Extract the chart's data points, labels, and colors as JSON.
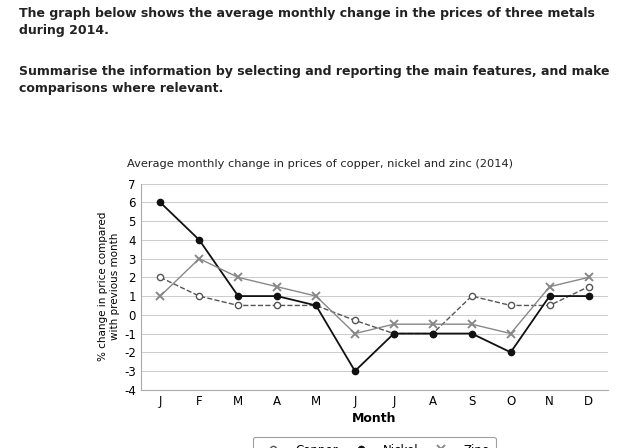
{
  "title": "Average monthly change in prices of copper, nickel and zinc (2014)",
  "xlabel": "Month",
  "ylabel": "% change in price compared\nwith previous month",
  "months": [
    "J",
    "F",
    "M",
    "A",
    "M",
    "J",
    "J",
    "A",
    "S",
    "O",
    "N",
    "D"
  ],
  "copper": [
    2,
    1,
    0.5,
    0.5,
    0.5,
    -0.3,
    -1,
    -1,
    1,
    0.5,
    0.5,
    1.5
  ],
  "nickel": [
    6,
    4,
    1,
    1,
    0.5,
    -3,
    -1,
    -1,
    -1,
    -2,
    1,
    1
  ],
  "zinc": [
    1,
    3,
    2,
    1.5,
    1,
    -1,
    -0.5,
    -0.5,
    -0.5,
    -1,
    1.5,
    2
  ],
  "ylim": [
    -4,
    7
  ],
  "yticks": [
    -4,
    -3,
    -2,
    -1,
    0,
    1,
    2,
    3,
    4,
    5,
    6,
    7
  ],
  "bg_color": "#ffffff",
  "grid_color": "#cccccc",
  "copper_color": "#555555",
  "nickel_color": "#111111",
  "zinc_color": "#888888",
  "header_text": "The graph below shows the average monthly change in the prices of three metals\nduring 2014.",
  "subheader_text": "Summarise the information by selecting and reporting the main features, and make\ncomparisons where relevant."
}
